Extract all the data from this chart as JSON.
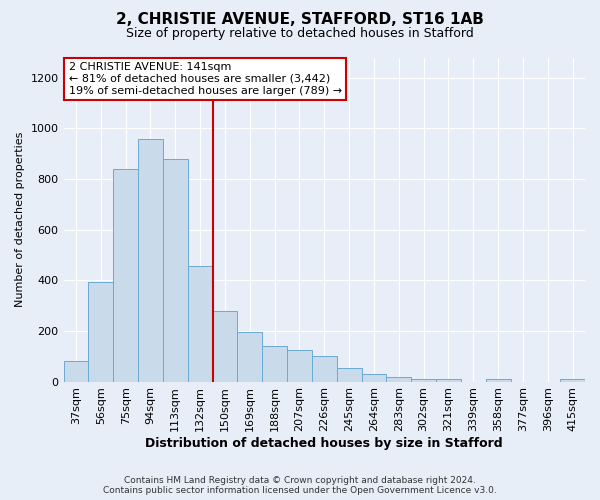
{
  "title": "2, CHRISTIE AVENUE, STAFFORD, ST16 1AB",
  "subtitle": "Size of property relative to detached houses in Stafford",
  "xlabel": "Distribution of detached houses by size in Stafford",
  "ylabel": "Number of detached properties",
  "categories": [
    "37sqm",
    "56sqm",
    "75sqm",
    "94sqm",
    "113sqm",
    "132sqm",
    "150sqm",
    "169sqm",
    "188sqm",
    "207sqm",
    "226sqm",
    "245sqm",
    "264sqm",
    "283sqm",
    "302sqm",
    "321sqm",
    "339sqm",
    "358sqm",
    "377sqm",
    "396sqm",
    "415sqm"
  ],
  "values": [
    80,
    395,
    840,
    960,
    880,
    455,
    280,
    195,
    140,
    125,
    100,
    55,
    30,
    20,
    10,
    10,
    0,
    10,
    0,
    0,
    10
  ],
  "bar_color": "#c9daea",
  "bar_edge_color": "#6aaad4",
  "property_label": "2 CHRISTIE AVENUE: 141sqm",
  "annotation_line1": "← 81% of detached houses are smaller (3,442)",
  "annotation_line2": "19% of semi-detached houses are larger (789) →",
  "annotation_box_color": "#ffffff",
  "annotation_box_edge": "#cc0000",
  "vline_color": "#cc0000",
  "ylim": [
    0,
    1280
  ],
  "yticks": [
    0,
    200,
    400,
    600,
    800,
    1000,
    1200
  ],
  "footer_line1": "Contains HM Land Registry data © Crown copyright and database right 2024.",
  "footer_line2": "Contains public sector information licensed under the Open Government Licence v3.0.",
  "background_color": "#e8eef7",
  "plot_bg_color": "#e8eef7",
  "grid_color": "#ffffff",
  "title_fontsize": 11,
  "subtitle_fontsize": 9,
  "xlabel_fontsize": 9,
  "ylabel_fontsize": 8,
  "tick_fontsize": 8,
  "annot_fontsize": 8,
  "footer_fontsize": 6.5
}
